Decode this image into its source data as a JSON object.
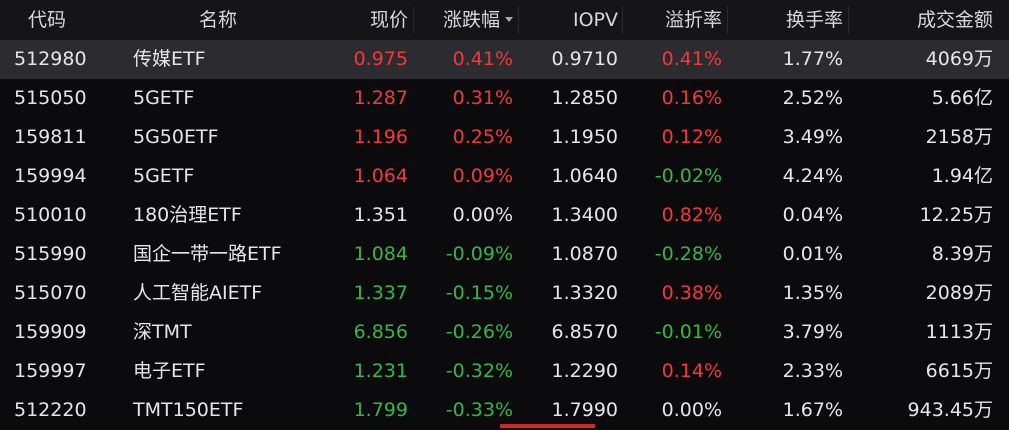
{
  "table": {
    "header": [
      "代码",
      "名称",
      "现价",
      "涨跌幅",
      "IOPV",
      "溢折率",
      "换手率",
      "成交金额"
    ],
    "rows": [
      [
        "512980",
        "传媒ETF",
        "0.975",
        "0.41%",
        "0.9710",
        "0.41%",
        "1.77%",
        "4069万"
      ],
      [
        "515050",
        "5GETF",
        "1.287",
        "0.31%",
        "1.2850",
        "0.16%",
        "2.52%",
        "5.66亿"
      ],
      [
        "159811",
        "5G50ETF",
        "1.196",
        "0.25%",
        "1.1950",
        "0.12%",
        "3.49%",
        "2158万"
      ],
      [
        "159994",
        "5GETF",
        "1.064",
        "0.09%",
        "1.0640",
        "-0.02%",
        "4.24%",
        "1.94亿"
      ],
      [
        "510010",
        "180治理ETF",
        "1.351",
        "0.00%",
        "1.3400",
        "0.82%",
        "0.04%",
        "12.25万"
      ],
      [
        "515990",
        "国企一带一路ETF",
        "1.084",
        "-0.09%",
        "1.0870",
        "-0.28%",
        "0.01%",
        "8.39万"
      ],
      [
        "515070",
        "人工智能AIETF",
        "1.337",
        "-0.15%",
        "1.3320",
        "0.38%",
        "1.35%",
        "2089万"
      ],
      [
        "159909",
        "深TMT",
        "6.856",
        "-0.26%",
        "6.8570",
        "-0.01%",
        "3.79%",
        "1113万"
      ],
      [
        "159997",
        "电子ETF",
        "1.231",
        "-0.32%",
        "1.2290",
        "0.14%",
        "2.33%",
        "6615万"
      ],
      [
        "512220",
        "TMT150ETF",
        "1.799",
        "-0.33%",
        "1.7990",
        "0.00%",
        "1.67%",
        "943.45万"
      ]
    ],
    "colors": {
      "up": "#f03a3a",
      "down": "#38b548",
      "flat": "#e6e6e6"
    }
  }
}
